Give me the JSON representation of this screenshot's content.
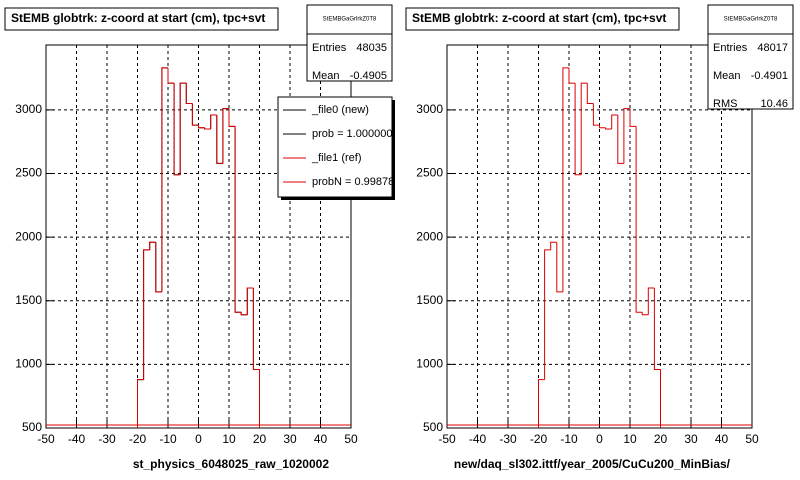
{
  "chart_data": [
    {
      "type": "histogram",
      "title": "StEMB globtrk: z-coord at start (cm), tpc+svt",
      "x_label": "st_physics_6048025_raw_1020002",
      "bins": [
        -20,
        -18,
        -16,
        -14,
        -12,
        -10,
        -8,
        -6,
        -4,
        -2,
        0,
        2,
        4,
        6,
        8,
        10,
        12,
        14,
        16,
        18,
        20
      ],
      "series": [
        {
          "name": "_file0 (new)",
          "stat": "prob = 1.000000",
          "color": "#000000",
          "values": [
            880,
            1900,
            1960,
            1570,
            3330,
            3210,
            2490,
            3210,
            3050,
            2880,
            2860,
            2850,
            2960,
            2580,
            3010,
            2870,
            1410,
            1390,
            1600,
            960
          ]
        },
        {
          "name": "_file1 (ref)",
          "stat": "probN = 0.99878",
          "color": "#dd0000",
          "values": [
            880,
            1900,
            1960,
            1570,
            3330,
            3210,
            2490,
            3210,
            3050,
            2880,
            2860,
            2850,
            2960,
            2580,
            3010,
            2870,
            1410,
            1390,
            1600,
            960
          ]
        }
      ],
      "stats": {
        "name": "StEMBGaGrlrkZ0T8",
        "rows": [
          {
            "label": "Entries",
            "value": 48035
          },
          {
            "label": "Mean",
            "value": -0.4905
          }
        ]
      },
      "xlim": [
        -50,
        50
      ],
      "xticks": [
        -50,
        -40,
        -30,
        -20,
        -10,
        0,
        10,
        20,
        30,
        40,
        50
      ],
      "ylim": [
        500,
        3510
      ],
      "yticks": [
        500,
        1000,
        1500,
        2000,
        2500,
        3000
      ],
      "grid": true
    },
    {
      "type": "histogram",
      "title": "StEMB globtrk: z-coord at start (cm), tpc+svt",
      "x_label": "new/daq_sl302.ittf/year_2005/CuCu200_MinBias/",
      "bins": [
        -20,
        -18,
        -16,
        -14,
        -12,
        -10,
        -8,
        -6,
        -4,
        -2,
        0,
        2,
        4,
        6,
        8,
        10,
        12,
        14,
        16,
        18,
        20
      ],
      "series": [
        {
          "color": "#dd0000",
          "values": [
            880,
            1900,
            1960,
            1570,
            3330,
            3210,
            2490,
            3210,
            3050,
            2880,
            2860,
            2850,
            2960,
            2580,
            3010,
            2870,
            1410,
            1390,
            1600,
            960
          ]
        }
      ],
      "stats": {
        "name": "StEMBGaGrlrkZ0T8",
        "rows": [
          {
            "label": "Entries",
            "value": 48017
          },
          {
            "label": "Mean",
            "value": -0.4901
          },
          {
            "label": "RMS",
            "value": 10.46
          }
        ]
      },
      "xlim": [
        -50,
        50
      ],
      "xticks": [
        -50,
        -40,
        -30,
        -20,
        -10,
        0,
        10,
        20,
        30,
        40,
        50
      ],
      "ylim": [
        500,
        3510
      ],
      "yticks": [
        500,
        1000,
        1500,
        2000,
        2500,
        3000
      ],
      "grid": true
    }
  ]
}
